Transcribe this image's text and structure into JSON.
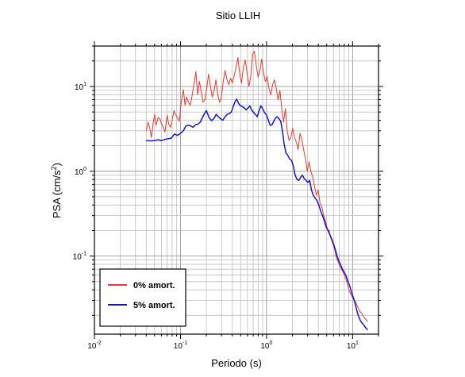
{
  "chart_data": {
    "type": "line",
    "title": "Sitio LLIH",
    "xlabel": "Periodo (s)",
    "ylabel_main": "PSA (cm/s",
    "ylabel_sup": "2",
    "ylabel_close": ")",
    "x_scale": "log",
    "y_scale": "log",
    "xlim": [
      0.01,
      20
    ],
    "ylim": [
      0.012,
      30
    ],
    "grid": true,
    "legend_position": "bottom-left",
    "x_ticks": [
      {
        "base": "10",
        "exp": "-2",
        "value": 0.01
      },
      {
        "base": "10",
        "exp": "-1",
        "value": 0.1
      },
      {
        "base": "10",
        "exp": "0",
        "value": 1
      },
      {
        "base": "10",
        "exp": "1",
        "value": 10
      }
    ],
    "y_ticks": [
      {
        "base": "10",
        "exp": "-1",
        "value": 0.1
      },
      {
        "base": "10",
        "exp": "0",
        "value": 1
      },
      {
        "base": "10",
        "exp": "1",
        "value": 10
      }
    ],
    "series": [
      {
        "name": "0% amort.",
        "color": "#e8392f",
        "stroke": 1,
        "points": [
          [
            0.04,
            3.0
          ],
          [
            0.042,
            3.8
          ],
          [
            0.044,
            3.2
          ],
          [
            0.046,
            2.5
          ],
          [
            0.048,
            3.6
          ],
          [
            0.05,
            4.7
          ],
          [
            0.052,
            3.5
          ],
          [
            0.055,
            4.3
          ],
          [
            0.058,
            4.1
          ],
          [
            0.06,
            3.7
          ],
          [
            0.063,
            3.3
          ],
          [
            0.066,
            2.9
          ],
          [
            0.07,
            4.6
          ],
          [
            0.073,
            3.6
          ],
          [
            0.077,
            3.3
          ],
          [
            0.08,
            4.0
          ],
          [
            0.084,
            5.2
          ],
          [
            0.088,
            4.6
          ],
          [
            0.092,
            4.3
          ],
          [
            0.097,
            3.9
          ],
          [
            0.102,
            6.5
          ],
          [
            0.108,
            9.2
          ],
          [
            0.113,
            6.0
          ],
          [
            0.118,
            7.5
          ],
          [
            0.124,
            6.5
          ],
          [
            0.13,
            6.0
          ],
          [
            0.137,
            8.0
          ],
          [
            0.144,
            11.0
          ],
          [
            0.151,
            15.0
          ],
          [
            0.158,
            8.0
          ],
          [
            0.166,
            11.5
          ],
          [
            0.175,
            8.5
          ],
          [
            0.183,
            6.5
          ],
          [
            0.193,
            7.0
          ],
          [
            0.202,
            9.5
          ],
          [
            0.212,
            14.0
          ],
          [
            0.223,
            10.0
          ],
          [
            0.234,
            7.5
          ],
          [
            0.246,
            9.0
          ],
          [
            0.258,
            12.0
          ],
          [
            0.271,
            8.0
          ],
          [
            0.285,
            6.5
          ],
          [
            0.299,
            7.5
          ],
          [
            0.314,
            11.5
          ],
          [
            0.33,
            15.5
          ],
          [
            0.347,
            12.0
          ],
          [
            0.364,
            10.5
          ],
          [
            0.382,
            12.5
          ],
          [
            0.401,
            11.0
          ],
          [
            0.422,
            13.5
          ],
          [
            0.443,
            17.0
          ],
          [
            0.465,
            22.0
          ],
          [
            0.488,
            14.0
          ],
          [
            0.513,
            11.0
          ],
          [
            0.539,
            17.0
          ],
          [
            0.566,
            20.5
          ],
          [
            0.594,
            14.5
          ],
          [
            0.624,
            10.0
          ],
          [
            0.655,
            13.0
          ],
          [
            0.688,
            24.0
          ],
          [
            0.722,
            26.0
          ],
          [
            0.758,
            18.0
          ],
          [
            0.796,
            13.0
          ],
          [
            0.836,
            15.0
          ],
          [
            0.878,
            21.0
          ],
          [
            0.922,
            14.5
          ],
          [
            0.968,
            11.5
          ],
          [
            1.016,
            13.0
          ],
          [
            1.067,
            9.5
          ],
          [
            1.121,
            8.0
          ],
          [
            1.177,
            10.5
          ],
          [
            1.235,
            12.0
          ],
          [
            1.297,
            9.5
          ],
          [
            1.362,
            7.0
          ],
          [
            1.43,
            9.0
          ],
          [
            1.502,
            5.5
          ],
          [
            1.577,
            3.8
          ],
          [
            1.656,
            5.5
          ],
          [
            1.739,
            3.0
          ],
          [
            1.825,
            2.3
          ],
          [
            1.917,
            2.5
          ],
          [
            2.013,
            3.2
          ],
          [
            2.113,
            2.5
          ],
          [
            2.219,
            2.2
          ],
          [
            2.33,
            1.8
          ],
          [
            2.446,
            2.8
          ],
          [
            2.569,
            2.4
          ],
          [
            2.697,
            1.8
          ],
          [
            2.832,
            1.4
          ],
          [
            2.974,
            1.0
          ],
          [
            3.122,
            1.3
          ],
          [
            3.278,
            1.0
          ],
          [
            3.442,
            0.85
          ],
          [
            3.615,
            0.66
          ],
          [
            3.795,
            0.52
          ],
          [
            3.985,
            0.6
          ],
          [
            4.185,
            0.42
          ],
          [
            4.394,
            0.38
          ],
          [
            4.614,
            0.3
          ],
          [
            4.844,
            0.26
          ],
          [
            5.086,
            0.21
          ],
          [
            5.341,
            0.2
          ],
          [
            5.608,
            0.16
          ],
          [
            5.888,
            0.14
          ],
          [
            6.182,
            0.12
          ],
          [
            6.491,
            0.095
          ],
          [
            6.816,
            0.085
          ],
          [
            7.157,
            0.075
          ],
          [
            7.515,
            0.068
          ],
          [
            7.891,
            0.062
          ],
          [
            8.285,
            0.055
          ],
          [
            8.7,
            0.047
          ],
          [
            9.135,
            0.039
          ],
          [
            9.591,
            0.035
          ],
          [
            10.071,
            0.032
          ],
          [
            10.574,
            0.03
          ],
          [
            11.103,
            0.027
          ],
          [
            11.658,
            0.024
          ],
          [
            12.241,
            0.022
          ],
          [
            12.853,
            0.021
          ],
          [
            13.496,
            0.019
          ],
          [
            14.171,
            0.018
          ],
          [
            14.879,
            0.017
          ],
          [
            15.0,
            0.017
          ]
        ]
      },
      {
        "name": "5% amort.",
        "color": "#1414d8",
        "stroke": 1.5,
        "points": [
          [
            0.04,
            2.3
          ],
          [
            0.045,
            2.28
          ],
          [
            0.05,
            2.3
          ],
          [
            0.055,
            2.35
          ],
          [
            0.06,
            2.3
          ],
          [
            0.066,
            2.38
          ],
          [
            0.072,
            2.42
          ],
          [
            0.078,
            2.45
          ],
          [
            0.085,
            2.75
          ],
          [
            0.092,
            2.65
          ],
          [
            0.1,
            2.8
          ],
          [
            0.108,
            3.0
          ],
          [
            0.115,
            3.4
          ],
          [
            0.122,
            3.5
          ],
          [
            0.13,
            3.45
          ],
          [
            0.14,
            3.3
          ],
          [
            0.15,
            3.55
          ],
          [
            0.16,
            3.6
          ],
          [
            0.17,
            3.8
          ],
          [
            0.18,
            4.3
          ],
          [
            0.19,
            4.8
          ],
          [
            0.2,
            5.2
          ],
          [
            0.215,
            4.3
          ],
          [
            0.23,
            3.95
          ],
          [
            0.245,
            4.2
          ],
          [
            0.26,
            4.7
          ],
          [
            0.275,
            4.4
          ],
          [
            0.29,
            4.2
          ],
          [
            0.31,
            4.0
          ],
          [
            0.33,
            4.4
          ],
          [
            0.35,
            4.7
          ],
          [
            0.37,
            4.8
          ],
          [
            0.39,
            5.0
          ],
          [
            0.41,
            5.8
          ],
          [
            0.43,
            6.6
          ],
          [
            0.45,
            7.1
          ],
          [
            0.47,
            6.4
          ],
          [
            0.49,
            6.0
          ],
          [
            0.52,
            5.8
          ],
          [
            0.55,
            5.6
          ],
          [
            0.58,
            5.3
          ],
          [
            0.61,
            5.6
          ],
          [
            0.64,
            5.9
          ],
          [
            0.67,
            5.3
          ],
          [
            0.7,
            5.0
          ],
          [
            0.74,
            4.7
          ],
          [
            0.78,
            4.4
          ],
          [
            0.82,
            5.2
          ],
          [
            0.86,
            5.9
          ],
          [
            0.9,
            5.5
          ],
          [
            0.95,
            4.9
          ],
          [
            1.0,
            4.6
          ],
          [
            1.05,
            4.0
          ],
          [
            1.1,
            3.5
          ],
          [
            1.15,
            3.5
          ],
          [
            1.2,
            3.8
          ],
          [
            1.26,
            4.2
          ],
          [
            1.32,
            4.4
          ],
          [
            1.39,
            4.2
          ],
          [
            1.46,
            3.9
          ],
          [
            1.53,
            3.0
          ],
          [
            1.6,
            2.1
          ],
          [
            1.68,
            1.65
          ],
          [
            1.76,
            1.55
          ],
          [
            1.85,
            1.4
          ],
          [
            1.95,
            1.35
          ],
          [
            2.05,
            1.15
          ],
          [
            2.15,
            0.9
          ],
          [
            2.26,
            0.8
          ],
          [
            2.37,
            0.78
          ],
          [
            2.49,
            0.85
          ],
          [
            2.61,
            0.9
          ],
          [
            2.74,
            0.82
          ],
          [
            2.88,
            0.78
          ],
          [
            3.02,
            0.74
          ],
          [
            3.17,
            0.78
          ],
          [
            3.33,
            0.6
          ],
          [
            3.5,
            0.52
          ],
          [
            3.68,
            0.48
          ],
          [
            3.86,
            0.45
          ],
          [
            4.05,
            0.4
          ],
          [
            4.26,
            0.34
          ],
          [
            4.47,
            0.3
          ],
          [
            4.69,
            0.26
          ],
          [
            4.93,
            0.22
          ],
          [
            5.17,
            0.2
          ],
          [
            5.43,
            0.18
          ],
          [
            5.7,
            0.16
          ],
          [
            5.99,
            0.14
          ],
          [
            6.29,
            0.12
          ],
          [
            6.6,
            0.1
          ],
          [
            6.93,
            0.088
          ],
          [
            7.28,
            0.078
          ],
          [
            7.64,
            0.07
          ],
          [
            8.02,
            0.064
          ],
          [
            8.42,
            0.058
          ],
          [
            8.85,
            0.05
          ],
          [
            9.29,
            0.044
          ],
          [
            9.75,
            0.037
          ],
          [
            10.24,
            0.032
          ],
          [
            10.75,
            0.027
          ],
          [
            11.29,
            0.022
          ],
          [
            11.85,
            0.019
          ],
          [
            12.45,
            0.017
          ],
          [
            13.07,
            0.016
          ],
          [
            13.72,
            0.015
          ],
          [
            14.41,
            0.014
          ],
          [
            15.0,
            0.0135
          ]
        ]
      }
    ]
  }
}
